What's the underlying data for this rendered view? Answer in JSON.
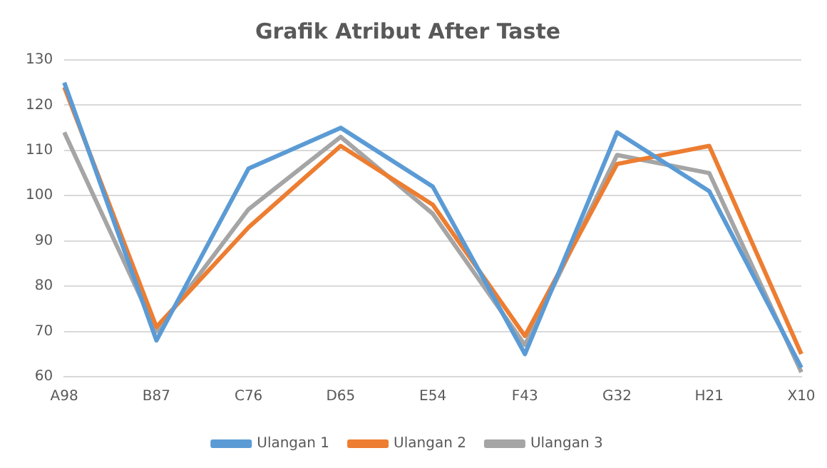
{
  "chart_data": {
    "type": "line",
    "title": "Grafik Atribut After Taste",
    "categories": [
      "A98",
      "B87",
      "C76",
      "D65",
      "E54",
      "F43",
      "G32",
      "H21",
      "X10"
    ],
    "series": [
      {
        "name": "Ulangan 1",
        "color": "#5b9bd5",
        "values": [
          125,
          68,
          106,
          115,
          102,
          65,
          114,
          101,
          62
        ]
      },
      {
        "name": "Ulangan 2",
        "color": "#ed7d31",
        "values": [
          124,
          71,
          93,
          111,
          98,
          69,
          107,
          111,
          65
        ]
      },
      {
        "name": "Ulangan 3",
        "color": "#a5a5a5",
        "values": [
          114,
          70,
          97,
          113,
          96,
          67,
          109,
          105,
          61
        ]
      }
    ],
    "ylim": [
      60,
      130
    ],
    "yticks": [
      60,
      70,
      80,
      90,
      100,
      110,
      120,
      130
    ],
    "grid": "y",
    "legend": "bottom",
    "marker": "none",
    "line_style": "solid"
  }
}
